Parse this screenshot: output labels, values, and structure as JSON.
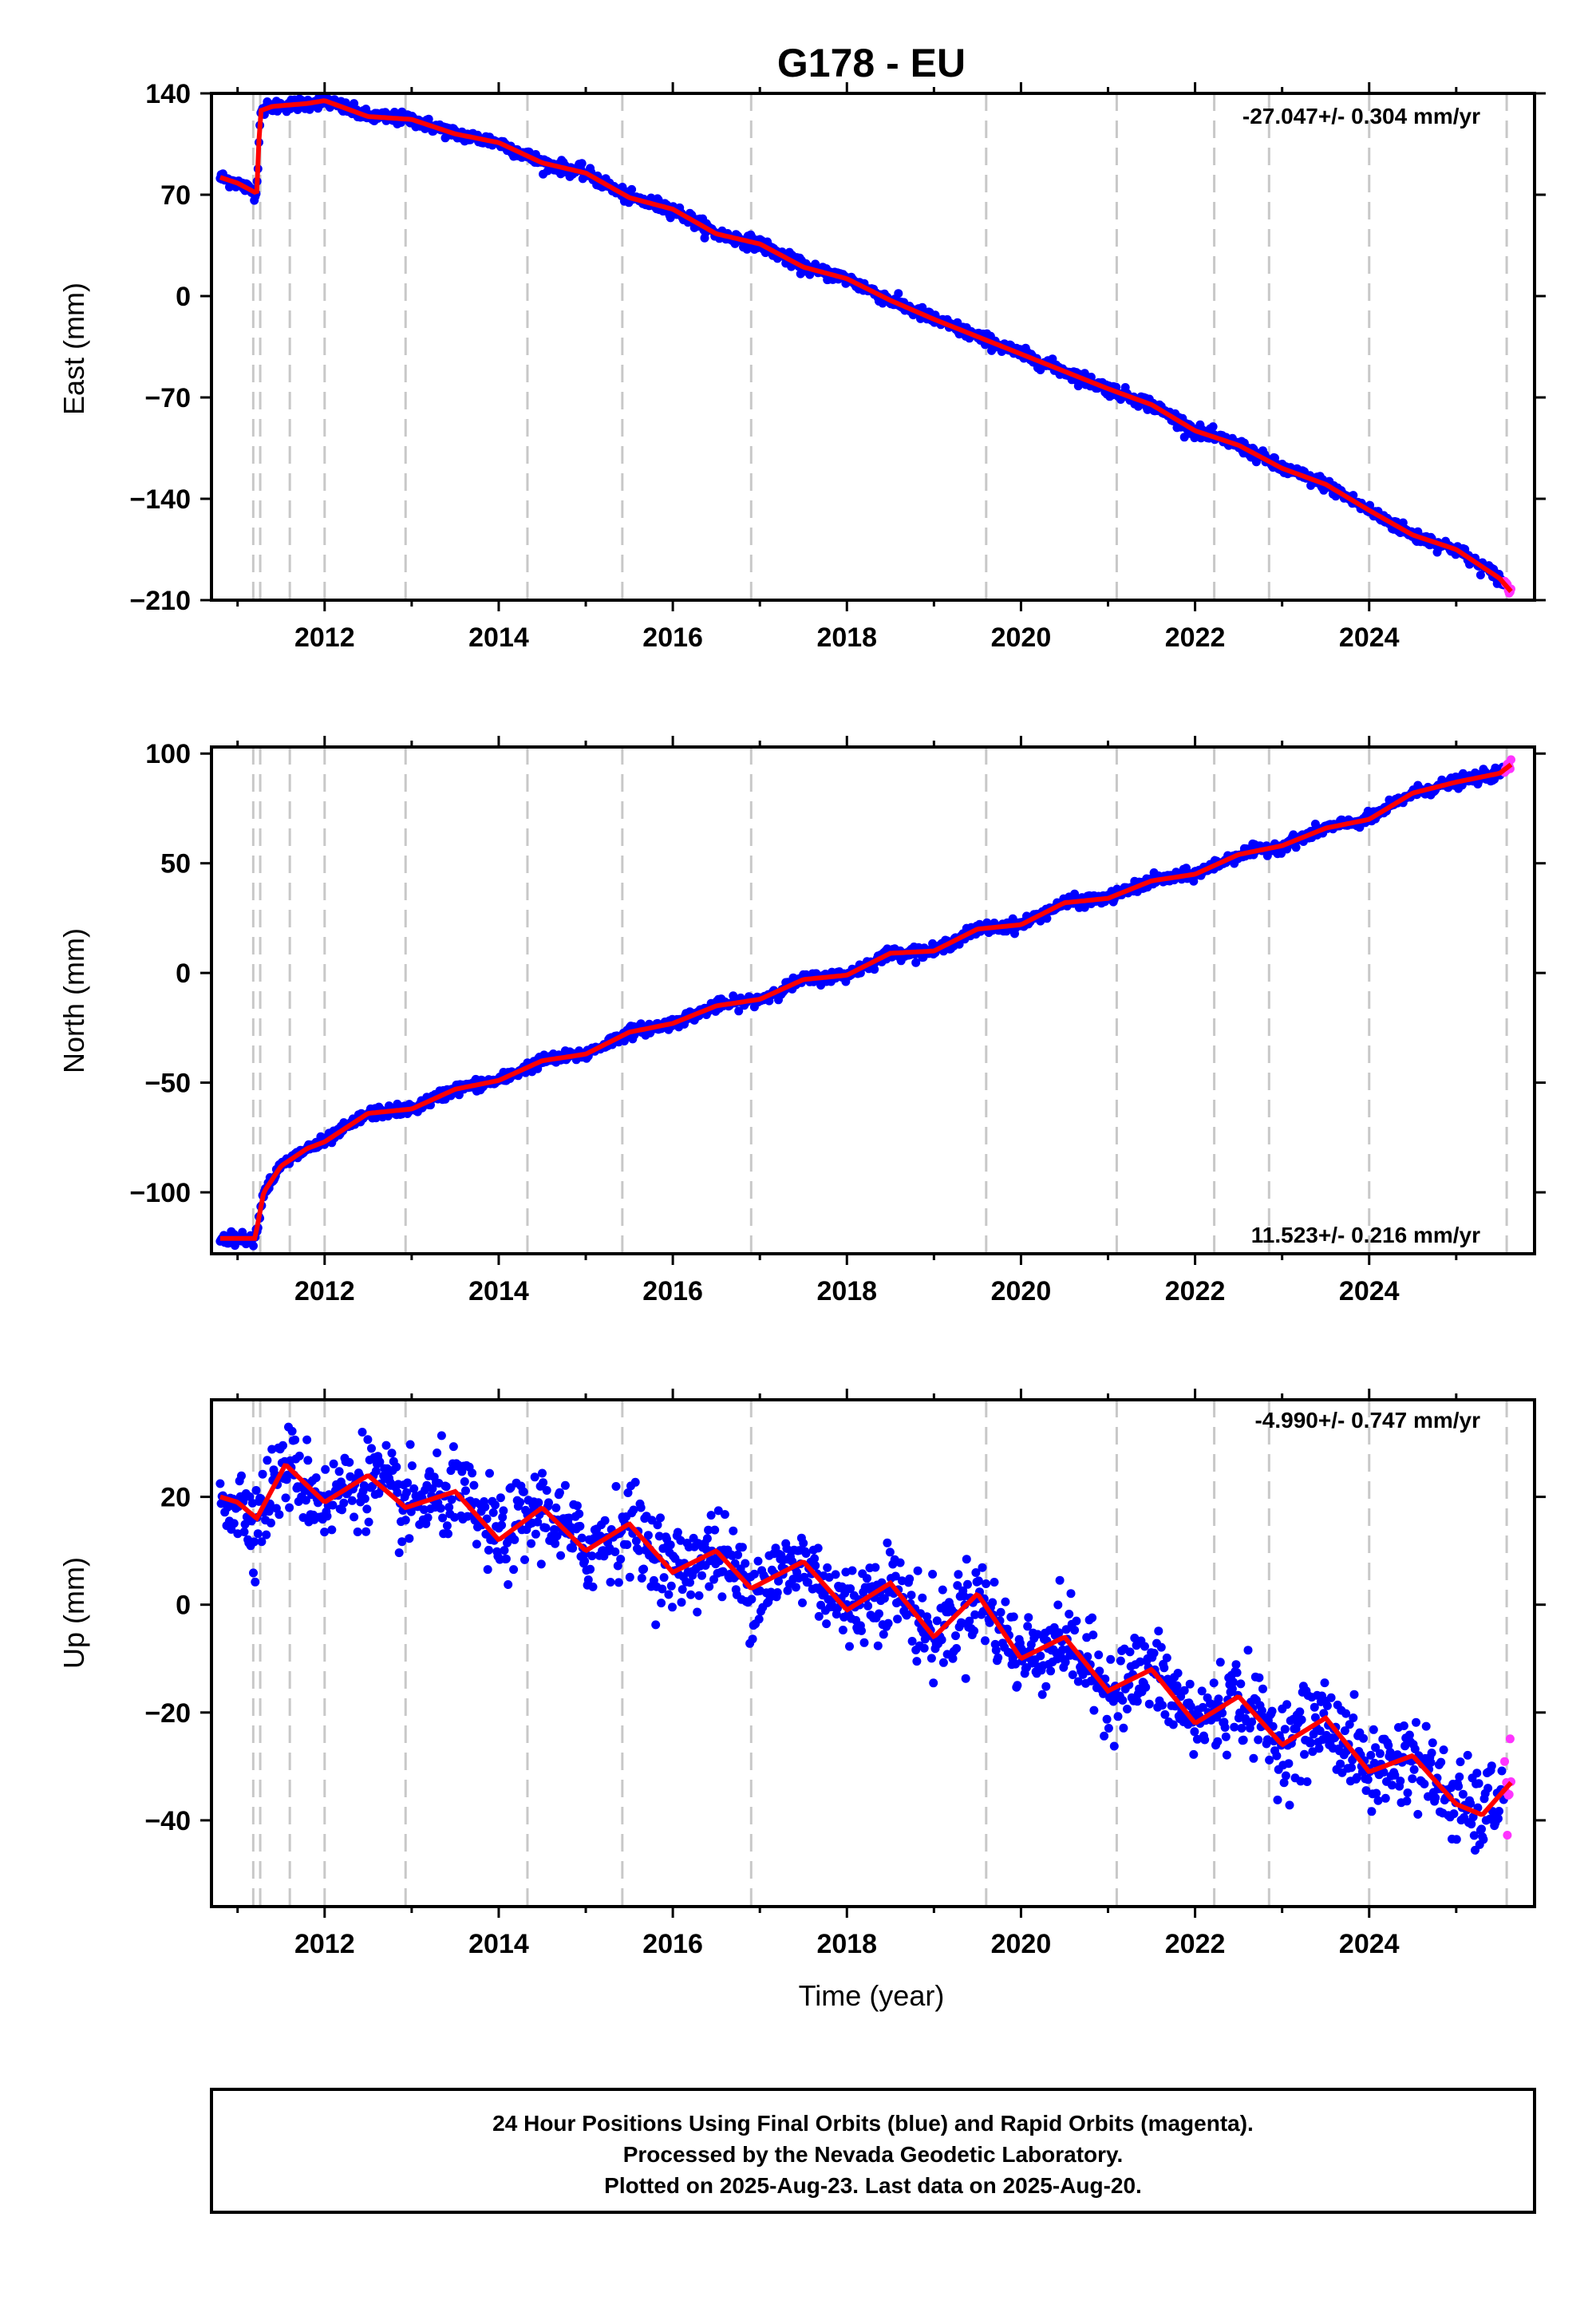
{
  "title": "G178 - EU",
  "xlabel": "Time (year)",
  "footer": {
    "line1": "24 Hour Positions Using Final Orbits (blue) and Rapid Orbits (magenta).",
    "line2": "Processed by the Nevada Geodetic Laboratory.",
    "line3": "Plotted on 2025-Aug-23. Last data on 2025-Aug-20."
  },
  "colors": {
    "final": "#0000ff",
    "rapid": "#ff33ff",
    "model": "#ff0000",
    "equip_lines": "#c8c8c8"
  },
  "chart_data": [
    {
      "type": "scatter",
      "ylabel": "East (mm)",
      "rate_label": "-27.047+/- 0.304 mm/yr",
      "xlim": [
        2010.7,
        2025.9
      ],
      "ylim": [
        -210,
        140
      ],
      "xticks": [
        2012,
        2014,
        2016,
        2018,
        2020,
        2022,
        2024
      ],
      "yticks": [
        140,
        70,
        0,
        -70,
        -140,
        -210
      ],
      "ytick_labels": [
        "140",
        "70",
        "0",
        "−70",
        "−140",
        "−210"
      ],
      "equipment_change_years": [
        2011.18,
        2011.26,
        2011.6,
        2012.0,
        2012.93,
        2014.33,
        2015.42,
        2016.9,
        2019.6,
        2021.1,
        2022.22,
        2022.85,
        2024.0,
        2025.58
      ],
      "series": [
        {
          "x": [
            2010.8,
            2011.0,
            2011.22,
            2011.26,
            2011.4,
            2011.8,
            2012.0,
            2012.5,
            2013.0,
            2013.5,
            2014.0,
            2014.5,
            2015.0,
            2015.5,
            2016.0,
            2016.5,
            2017.0,
            2017.5,
            2018.0,
            2018.5,
            2019.0,
            2019.5,
            2020.0,
            2020.5,
            2021.0,
            2021.5,
            2022.0,
            2022.5,
            2023.0,
            2023.5,
            2024.0,
            2024.5,
            2025.0,
            2025.5,
            2025.63
          ],
          "y": [
            82,
            78,
            71,
            128,
            131,
            133,
            135,
            124,
            122,
            112,
            106,
            92,
            85,
            68,
            60,
            43,
            36,
            20,
            12,
            -3,
            -16,
            -28,
            -40,
            -52,
            -64,
            -75,
            -93,
            -103,
            -119,
            -130,
            -148,
            -165,
            -175,
            -195,
            -204
          ]
        }
      ]
    },
    {
      "type": "scatter",
      "ylabel": "North (mm)",
      "rate_label": "11.523+/- 0.216 mm/yr",
      "xlim": [
        2010.7,
        2025.9
      ],
      "ylim": [
        -128,
        103
      ],
      "xticks": [
        2012,
        2014,
        2016,
        2018,
        2020,
        2022,
        2024
      ],
      "yticks": [
        100,
        50,
        0,
        -50,
        -100
      ],
      "ytick_labels": [
        "100",
        "50",
        "0",
        "−50",
        "−100"
      ],
      "equipment_change_years": [
        2011.18,
        2011.26,
        2011.6,
        2012.0,
        2012.93,
        2014.33,
        2015.42,
        2016.9,
        2019.6,
        2021.1,
        2022.22,
        2022.85,
        2024.0,
        2025.58
      ],
      "series": [
        {
          "x": [
            2010.8,
            2011.0,
            2011.2,
            2011.3,
            2011.5,
            2011.8,
            2012.0,
            2012.5,
            2013.0,
            2013.5,
            2014.0,
            2014.5,
            2015.0,
            2015.5,
            2016.0,
            2016.5,
            2017.0,
            2017.5,
            2018.0,
            2018.5,
            2019.0,
            2019.5,
            2020.0,
            2020.5,
            2021.0,
            2021.5,
            2022.0,
            2022.5,
            2023.0,
            2023.5,
            2024.0,
            2024.5,
            2025.0,
            2025.5,
            2025.63
          ],
          "y": [
            -121,
            -121,
            -121,
            -100,
            -88,
            -80,
            -77,
            -64,
            -62,
            -53,
            -49,
            -40,
            -37,
            -27,
            -23,
            -15,
            -12,
            -3,
            -1,
            9,
            10,
            20,
            22,
            32,
            34,
            42,
            45,
            54,
            58,
            66,
            70,
            82,
            87,
            91,
            95
          ]
        }
      ]
    },
    {
      "type": "scatter",
      "ylabel": "Up (mm)",
      "rate_label": "-4.990+/- 0.747 mm/yr",
      "xlim": [
        2010.7,
        2025.9
      ],
      "ylim": [
        -56,
        38
      ],
      "xticks": [
        2012,
        2014,
        2016,
        2018,
        2020,
        2022,
        2024
      ],
      "yticks": [
        20,
        0,
        -20,
        -40
      ],
      "ytick_labels": [
        "20",
        "0",
        "−20",
        "−40"
      ],
      "equipment_change_years": [
        2011.18,
        2011.26,
        2011.6,
        2012.0,
        2012.93,
        2014.33,
        2015.42,
        2016.9,
        2019.6,
        2021.1,
        2022.22,
        2022.85,
        2024.0,
        2025.58
      ],
      "series": [
        {
          "x": [
            2010.8,
            2011.0,
            2011.22,
            2011.55,
            2012.0,
            2012.5,
            2012.93,
            2013.5,
            2014.0,
            2014.5,
            2015.0,
            2015.5,
            2016.0,
            2016.5,
            2016.9,
            2017.5,
            2018.0,
            2018.5,
            2019.0,
            2019.5,
            2020.0,
            2020.5,
            2021.0,
            2021.5,
            2022.0,
            2022.5,
            2023.0,
            2023.5,
            2024.0,
            2024.5,
            2025.0,
            2025.3,
            2025.63
          ],
          "y": [
            20,
            19,
            16,
            26,
            19,
            24,
            18,
            21,
            12,
            18,
            10,
            15,
            6,
            10,
            3,
            8,
            -1,
            4,
            -6,
            2,
            -10,
            -6,
            -16,
            -12,
            -22,
            -17,
            -26,
            -21,
            -31,
            -28,
            -37,
            -39,
            -33
          ]
        }
      ]
    }
  ]
}
